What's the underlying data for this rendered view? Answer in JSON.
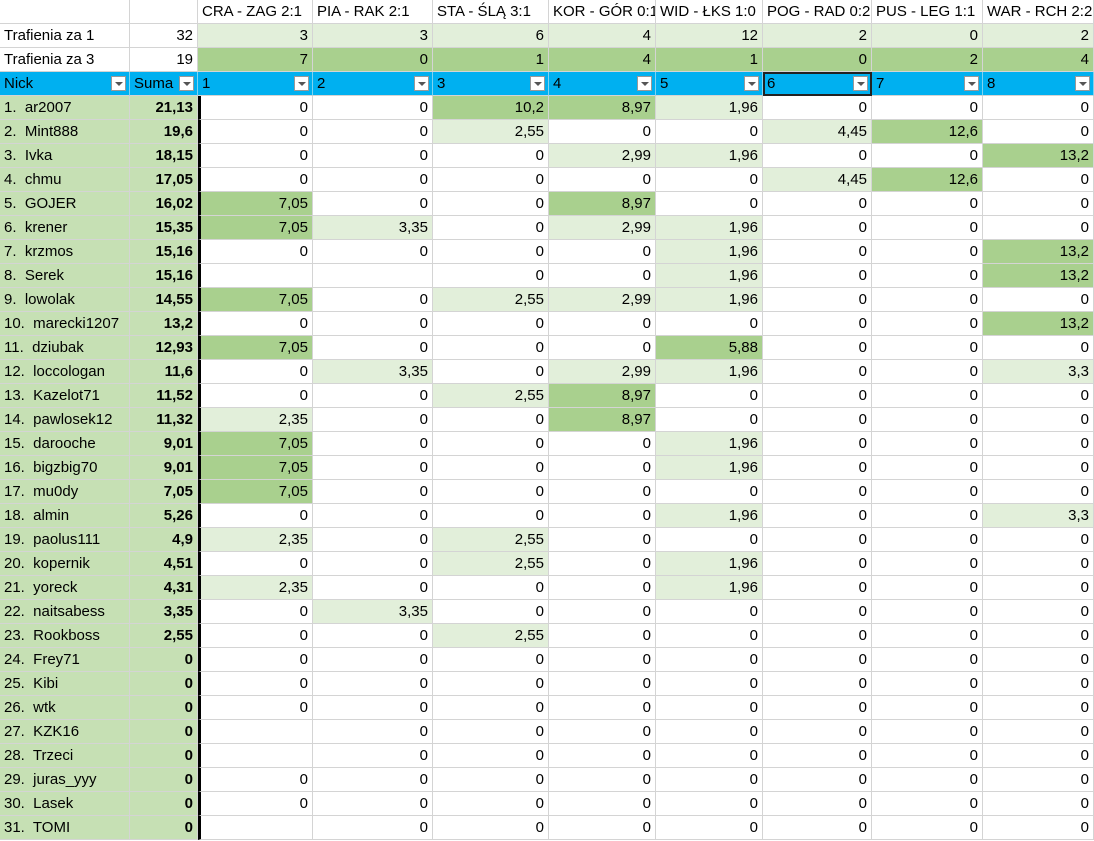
{
  "table": {
    "rows": [
      [
        null,
        null,
        "CRA - ZAG 2:1",
        "PIA - RAK 2:1",
        "STA - ŚLĄ 3:1",
        "KOR - GÓR 0:1",
        "WID - ŁKS 1:0",
        "POG - RAD 0:2",
        "PUS - LEG 1:1",
        "WAR - RCH 2:2"
      ],
      [
        "Trafienia za 1",
        "32",
        "3",
        "3",
        "6",
        "4",
        "12",
        "2",
        "0",
        "2"
      ],
      [
        "Trafienia za 3",
        "19",
        "7",
        "0",
        "1",
        "4",
        "1",
        "0",
        "2",
        "4"
      ],
      [
        "Nick",
        "Suma",
        "1",
        "2",
        "3",
        "4",
        "5",
        "6",
        "7",
        "8"
      ],
      [
        "1.  ar2007",
        "21,13",
        "0",
        "0",
        "10,2",
        "8,97",
        "1,96",
        "0",
        "0",
        "0"
      ],
      [
        "2.  Mint888",
        "19,6",
        "0",
        "0",
        "2,55",
        "0",
        "0",
        "4,45",
        "12,6",
        "0"
      ],
      [
        "3.  Ivka",
        "18,15",
        "0",
        "0",
        "0",
        "2,99",
        "1,96",
        "0",
        "0",
        "13,2"
      ],
      [
        "4.  chmu",
        "17,05",
        "0",
        "0",
        "0",
        "0",
        "0",
        "4,45",
        "12,6",
        "0"
      ],
      [
        "5.  GOJER",
        "16,02",
        "7,05",
        "0",
        "0",
        "8,97",
        "0",
        "0",
        "0",
        "0"
      ],
      [
        "6.  krener",
        "15,35",
        "7,05",
        "3,35",
        "0",
        "2,99",
        "1,96",
        "0",
        "0",
        "0"
      ],
      [
        "7.  krzmos",
        "15,16",
        "0",
        "0",
        "0",
        "0",
        "1,96",
        "0",
        "0",
        "13,2"
      ],
      [
        "8.  Serek",
        "15,16",
        null,
        null,
        "0",
        "0",
        "1,96",
        "0",
        "0",
        "13,2"
      ],
      [
        "9.  lowolak",
        "14,55",
        "7,05",
        "0",
        "2,55",
        "2,99",
        "1,96",
        "0",
        "0",
        "0"
      ],
      [
        "10.  marecki1207",
        "13,2",
        "0",
        "0",
        "0",
        "0",
        "0",
        "0",
        "0",
        "13,2"
      ],
      [
        "11.  dziubak",
        "12,93",
        "7,05",
        "0",
        "0",
        "0",
        "5,88",
        "0",
        "0",
        "0"
      ],
      [
        "12.  loccologan",
        "11,6",
        "0",
        "3,35",
        "0",
        "2,99",
        "1,96",
        "0",
        "0",
        "3,3"
      ],
      [
        "13.  Kazelot71",
        "11,52",
        "0",
        "0",
        "2,55",
        "8,97",
        "0",
        "0",
        "0",
        "0"
      ],
      [
        "14.  pawlosek12",
        "11,32",
        "2,35",
        "0",
        "0",
        "8,97",
        "0",
        "0",
        "0",
        "0"
      ],
      [
        "15.  darooche",
        "9,01",
        "7,05",
        "0",
        "0",
        "0",
        "1,96",
        "0",
        "0",
        "0"
      ],
      [
        "16.  bigzbig70",
        "9,01",
        "7,05",
        "0",
        "0",
        "0",
        "1,96",
        "0",
        "0",
        "0"
      ],
      [
        "17.  mu0dy",
        "7,05",
        "7,05",
        "0",
        "0",
        "0",
        "0",
        "0",
        "0",
        "0"
      ],
      [
        "18.  almin",
        "5,26",
        "0",
        "0",
        "0",
        "0",
        "1,96",
        "0",
        "0",
        "3,3"
      ],
      [
        "19.  paolus111",
        "4,9",
        "2,35",
        "0",
        "2,55",
        "0",
        "0",
        "0",
        "0",
        "0"
      ],
      [
        "20.  kopernik",
        "4,51",
        "0",
        "0",
        "2,55",
        "0",
        "1,96",
        "0",
        "0",
        "0"
      ],
      [
        "21.  yoreck",
        "4,31",
        "2,35",
        "0",
        "0",
        "0",
        "1,96",
        "0",
        "0",
        "0"
      ],
      [
        "22.  naitsabess",
        "3,35",
        "0",
        "3,35",
        "0",
        "0",
        "0",
        "0",
        "0",
        "0"
      ],
      [
        "23.  Rookboss",
        "2,55",
        "0",
        "0",
        "2,55",
        "0",
        "0",
        "0",
        "0",
        "0"
      ],
      [
        "24.  Frey71",
        "0",
        "0",
        "0",
        "0",
        "0",
        "0",
        "0",
        "0",
        "0"
      ],
      [
        "25.  Kibi",
        "0",
        "0",
        "0",
        "0",
        "0",
        "0",
        "0",
        "0",
        "0"
      ],
      [
        "26.  wtk",
        "0",
        "0",
        "0",
        "0",
        "0",
        "0",
        "0",
        "0",
        "0"
      ],
      [
        "27.  KZK16",
        "0",
        null,
        "0",
        "0",
        "0",
        "0",
        "0",
        "0",
        "0"
      ],
      [
        "28.  Trzeci",
        "0",
        null,
        "0",
        "0",
        "0",
        "0",
        "0",
        "0",
        "0"
      ],
      [
        "29.  juras_yyy",
        "0",
        "0",
        "0",
        "0",
        "0",
        "0",
        "0",
        "0",
        "0"
      ],
      [
        "30.  Lasek",
        "0",
        "0",
        "0",
        "0",
        "0",
        "0",
        "0",
        "0",
        "0"
      ],
      [
        "31.  TOMI",
        "0",
        null,
        "0",
        "0",
        "0",
        "0",
        "0",
        "0",
        "0"
      ]
    ]
  }
}
